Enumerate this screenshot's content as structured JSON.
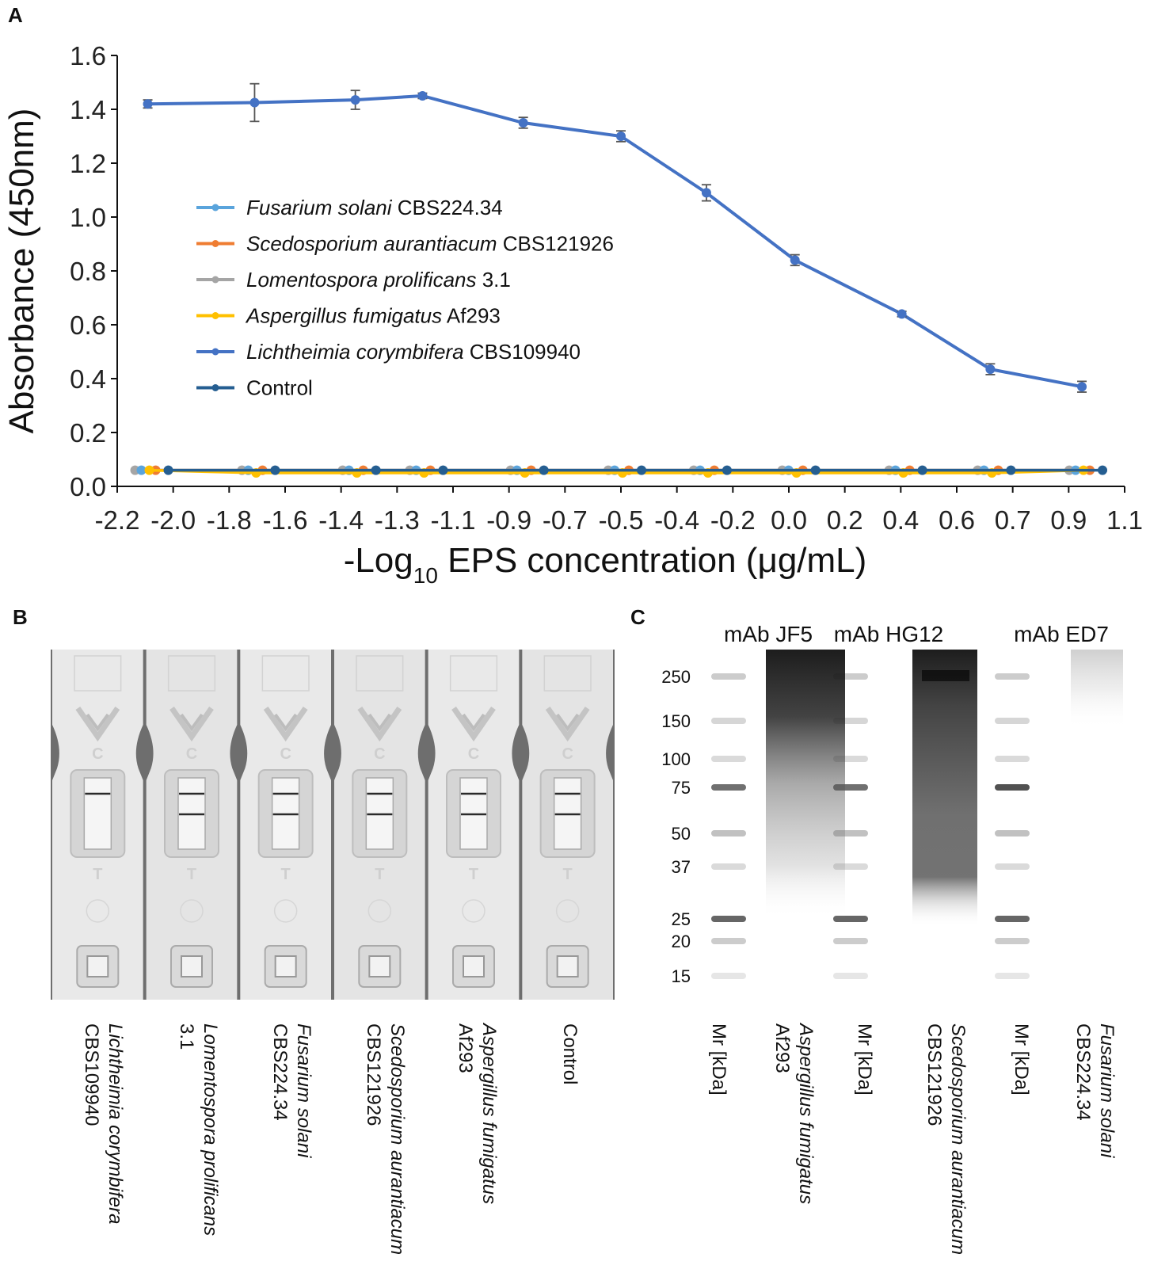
{
  "panels": {
    "a": "A",
    "b": "B",
    "c": "C"
  },
  "chart_data": {
    "type": "line",
    "ylabel": "Absorbance (450nm)",
    "xlabel_prefix": "-Log",
    "xlabel_sub": "10",
    "xlabel_suffix": " EPS concentration (μg/mL)",
    "ylim": [
      0,
      1.6
    ],
    "yticks": [
      "0.0",
      "0.2",
      "0.4",
      "0.6",
      "0.8",
      "1.0",
      "1.2",
      "1.4",
      "1.6"
    ],
    "xticks": [
      "-2.2",
      "-2.0",
      "-1.8",
      "-1.6",
      "-1.4",
      "-1.3",
      "-1.1",
      "-0.9",
      "-0.7",
      "-0.5",
      "-0.4",
      "-0.2",
      "0.0",
      "0.2",
      "0.4",
      "0.6",
      "0.7",
      "0.9",
      "1.1"
    ],
    "x_values": [
      -2.1,
      -1.75,
      -1.42,
      -1.2,
      -0.87,
      -0.55,
      -0.27,
      0.02,
      0.37,
      0.66,
      0.96
    ],
    "series": [
      {
        "name": "Fusarium solani",
        "strain": "CBS224.34",
        "color": "#5aa4dc",
        "values": [
          0.06,
          0.06,
          0.06,
          0.06,
          0.06,
          0.06,
          0.06,
          0.06,
          0.06,
          0.06,
          0.06
        ]
      },
      {
        "name": "Scedosporium aurantiacum",
        "strain": "CBS121926",
        "color": "#ef7d32",
        "values": [
          0.06,
          0.06,
          0.06,
          0.06,
          0.06,
          0.06,
          0.06,
          0.06,
          0.06,
          0.06,
          0.06
        ]
      },
      {
        "name": "Lomentospora prolificans",
        "strain": "3.1",
        "color": "#a5a5a5",
        "values": [
          0.06,
          0.06,
          0.06,
          0.06,
          0.06,
          0.06,
          0.06,
          0.06,
          0.06,
          0.06,
          0.06
        ]
      },
      {
        "name": "Aspergillus fumigatus",
        "strain": "Af293",
        "color": "#ffc000",
        "values": [
          0.06,
          0.05,
          0.05,
          0.05,
          0.05,
          0.05,
          0.05,
          0.05,
          0.05,
          0.05,
          0.06
        ]
      },
      {
        "name": "Lichtheimia corymbifera",
        "strain": "CBS109940",
        "color": "#4472c4",
        "values": [
          1.42,
          1.425,
          1.435,
          1.45,
          1.35,
          1.3,
          1.09,
          0.84,
          0.64,
          0.435,
          0.37
        ],
        "errors": [
          0.015,
          0.07,
          0.035,
          0.01,
          0.02,
          0.02,
          0.03,
          0.02,
          0.01,
          0.02,
          0.02
        ]
      },
      {
        "name": "Control",
        "strain": "",
        "color": "#255e91",
        "values": [
          0.06,
          0.06,
          0.06,
          0.06,
          0.06,
          0.06,
          0.06,
          0.06,
          0.06,
          0.06,
          0.06
        ]
      }
    ]
  },
  "lfa": {
    "strip_letters": {
      "c": "C",
      "t": "T"
    },
    "labels": [
      {
        "italic": "Lichtheimia corymbifera",
        "plain": "CBS109940"
      },
      {
        "italic": "Lomentospora prolificans",
        "plain": "3.1"
      },
      {
        "italic": "Fusarium solani",
        "plain": "CBS224.34"
      },
      {
        "italic": "Scedosporium aurantiacum",
        "plain": "CBS121926"
      },
      {
        "italic": "Aspergillus fumigatus",
        "plain": "Af293"
      },
      {
        "italic": "",
        "plain": "Control"
      }
    ],
    "test_band_visible": [
      false,
      true,
      true,
      true,
      true,
      true
    ]
  },
  "gel": {
    "titles": [
      "mAb JF5",
      "mAb HG12",
      "mAb ED7"
    ],
    "mw_markers": [
      "250",
      "150",
      "100",
      "75",
      "50",
      "37",
      "25",
      "20",
      "15"
    ],
    "marker_label": "Mr [kDa]",
    "samples": [
      {
        "italic": "Aspergillus fumigatus",
        "plain": "Af293"
      },
      {
        "italic": "Scedosporium aurantiacum",
        "plain": "CBS121926"
      },
      {
        "italic": "Fusarium solani",
        "plain": "CBS224.34"
      }
    ]
  }
}
